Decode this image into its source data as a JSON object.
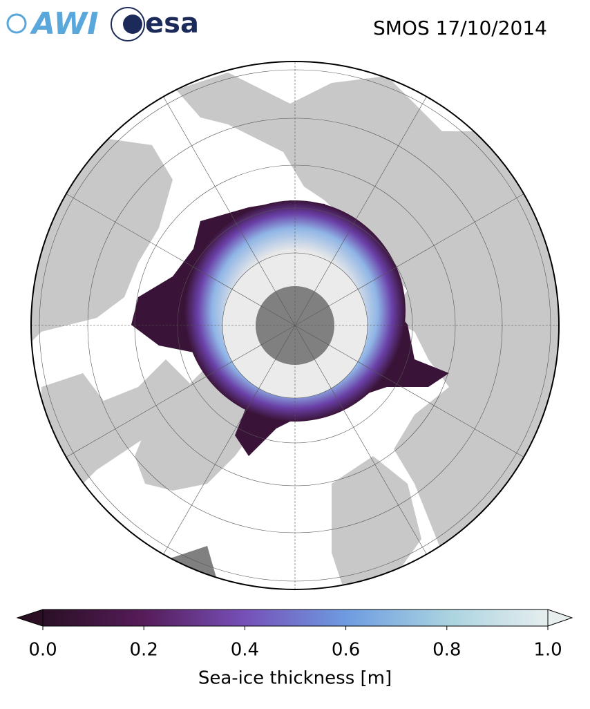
{
  "header": {
    "title": "SMOS 17/10/2014",
    "logos": [
      "AWI",
      "esa"
    ]
  },
  "colorbar": {
    "label": "Sea-ice thickness [m]",
    "range": [
      0,
      1
    ],
    "colors": [
      "#2a0f25",
      "#561c5a",
      "#7650b8",
      "#6d9be0",
      "#a9d2e0",
      "#e6eeee"
    ],
    "ticks": [
      {
        "value": 0,
        "label": "0.0"
      },
      {
        "value": 0.2,
        "label": "0.2"
      },
      {
        "value": 0.4,
        "label": "0.4"
      },
      {
        "value": 0.6,
        "label": "0.6"
      },
      {
        "value": 0.8,
        "label": "0.8"
      },
      {
        "value": 1,
        "label": "1.0"
      }
    ]
  }
}
